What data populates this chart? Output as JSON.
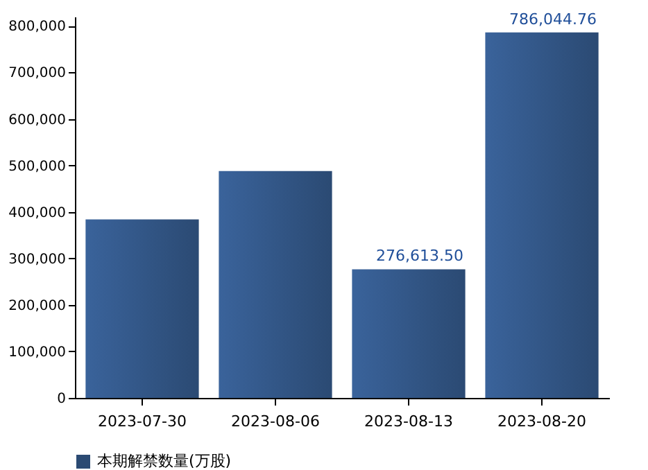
{
  "chart_data": {
    "type": "bar",
    "categories": [
      "2023-07-30",
      "2023-08-06",
      "2023-08-13",
      "2023-08-20"
    ],
    "series": [
      {
        "name": "本期解禁数量(万股)",
        "color": "#2b4a73",
        "values": [
          384000,
          488000,
          276613.5,
          786044.76
        ]
      }
    ],
    "ylim": [
      0,
      820000
    ],
    "yticks": [
      {
        "value": 0,
        "label": "0"
      },
      {
        "value": 100000,
        "label": "100,000"
      },
      {
        "value": 200000,
        "label": "200,000"
      },
      {
        "value": 300000,
        "label": "300,000"
      },
      {
        "value": 400000,
        "label": "400,000"
      },
      {
        "value": 500000,
        "label": "500,000"
      },
      {
        "value": 600000,
        "label": "600,000"
      },
      {
        "value": 700000,
        "label": "700,000"
      },
      {
        "value": 800000,
        "label": "800,000"
      }
    ],
    "annotations": [
      {
        "text": "276,613.50",
        "x": "2023-08-13",
        "y": 276613.5
      },
      {
        "text": "786,044.76",
        "x": "2023-08-20",
        "y": 786044.76
      }
    ],
    "grid": false,
    "legend": "bottom"
  }
}
